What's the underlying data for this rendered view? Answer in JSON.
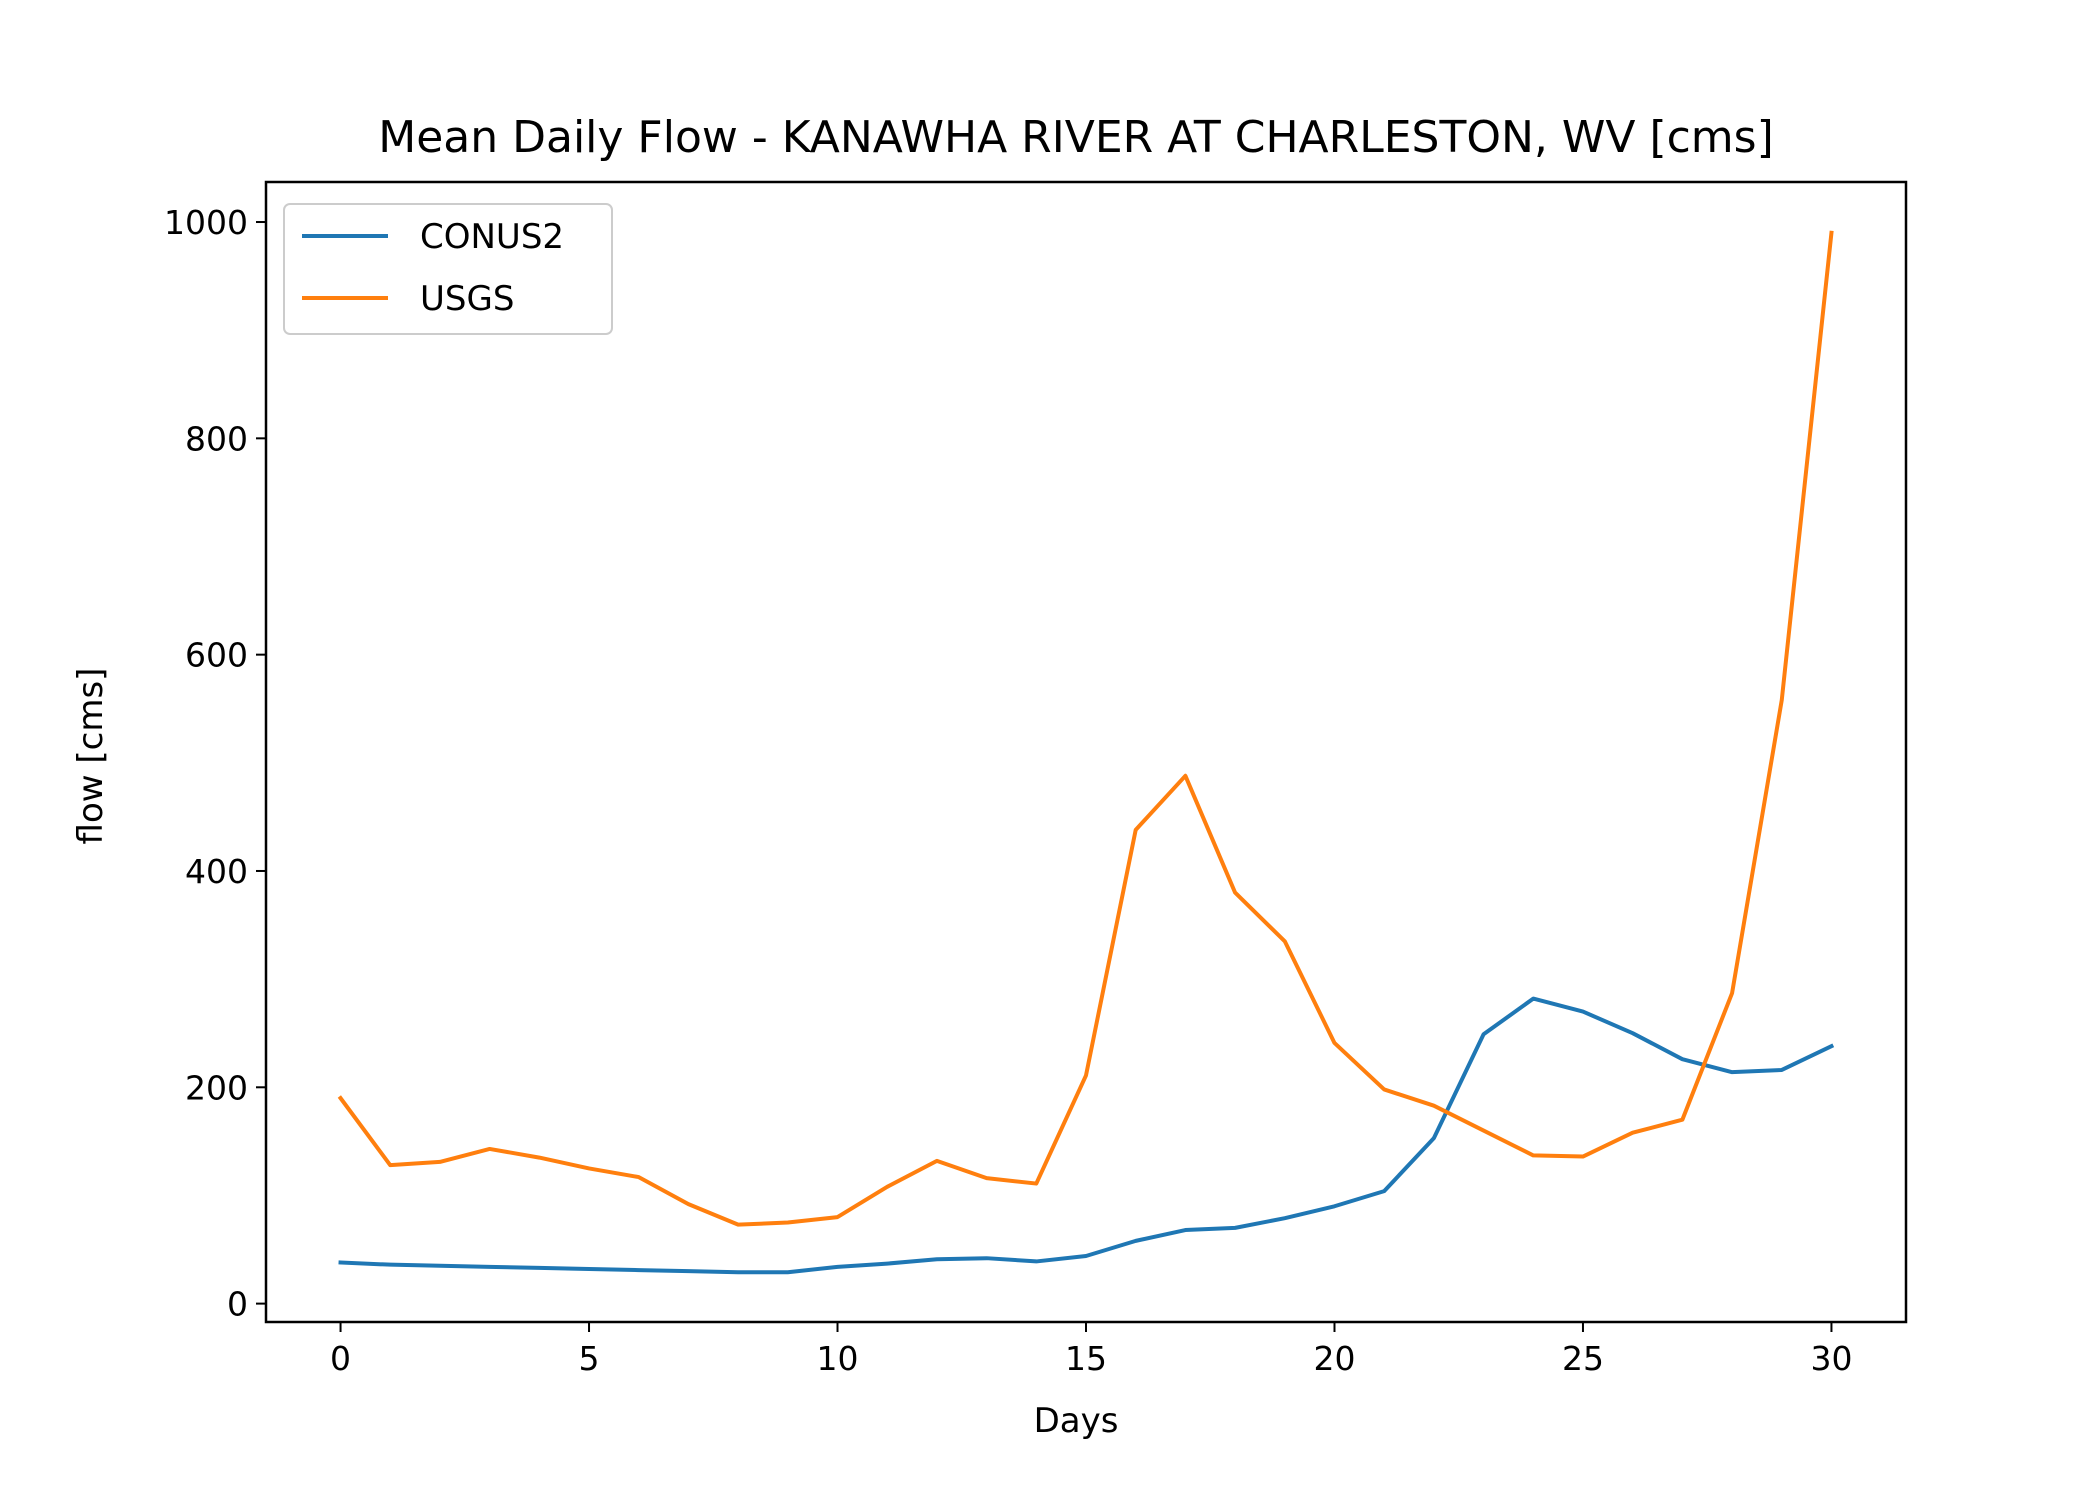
{
  "chart_data": {
    "type": "line",
    "title": "Mean Daily Flow - KANAWHA RIVER AT CHARLESTON, WV [cms]",
    "xlabel": "Days",
    "ylabel": "flow [cms]",
    "xlim": [
      -1.5,
      31.5
    ],
    "ylim": [
      -17,
      1037
    ],
    "xticks": [
      0,
      5,
      10,
      15,
      20,
      25,
      30
    ],
    "yticks": [
      0,
      200,
      400,
      600,
      800,
      1000
    ],
    "grid": false,
    "legend_position": "top-left",
    "x": [
      0,
      1,
      2,
      3,
      4,
      5,
      6,
      7,
      8,
      9,
      10,
      11,
      12,
      13,
      14,
      15,
      16,
      17,
      18,
      19,
      20,
      21,
      22,
      23,
      24,
      25,
      26,
      27,
      28,
      29,
      30
    ],
    "series": [
      {
        "name": "CONUS2",
        "color": "#1f77b4",
        "values": [
          38,
          36,
          35,
          34,
          33,
          32,
          31,
          30,
          29,
          29,
          34,
          37,
          41,
          42,
          39,
          44,
          58,
          68,
          70,
          79,
          90,
          104,
          153,
          249,
          282,
          270,
          250,
          226,
          214,
          216,
          238
        ]
      },
      {
        "name": "USGS",
        "color": "#ff7f0e",
        "values": [
          190,
          128,
          131,
          143,
          135,
          125,
          117,
          92,
          73,
          75,
          80,
          108,
          132,
          116,
          111,
          211,
          438,
          488,
          380,
          335,
          241,
          198,
          183,
          160,
          137,
          136,
          158,
          170,
          287,
          558,
          990
        ]
      }
    ]
  }
}
